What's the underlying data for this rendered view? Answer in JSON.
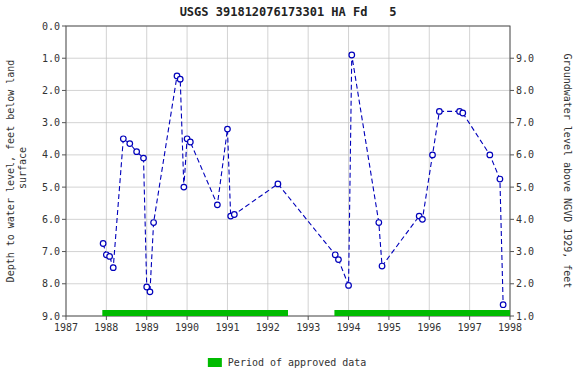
{
  "chart_data": {
    "type": "line",
    "title": "USGS 391812076173301 HA Fd   5",
    "y_label": "Depth to water level, feet below land\n surface",
    "y2_label": "Groundwater level above NGVD 1929, feet",
    "x": [
      1987.92,
      1988.0,
      1988.08,
      1988.17,
      1988.42,
      1988.58,
      1988.75,
      1988.92,
      1989.0,
      1989.08,
      1989.17,
      1989.75,
      1989.83,
      1989.92,
      1990.0,
      1990.08,
      1990.75,
      1991.0,
      1991.08,
      1991.17,
      1992.25,
      1993.67,
      1993.75,
      1994.0,
      1994.08,
      1994.75,
      1994.83,
      1995.75,
      1995.83,
      1996.08,
      1996.25,
      1996.75,
      1996.83,
      1997.5,
      1997.75,
      1997.83
    ],
    "series": [
      {
        "color": "#0000BB",
        "marker": "circle",
        "line_style": "dashed",
        "values": [
          6.75,
          7.1,
          7.15,
          7.5,
          3.5,
          3.65,
          3.9,
          4.1,
          8.1,
          8.25,
          6.1,
          1.55,
          1.65,
          5.0,
          3.5,
          3.6,
          5.55,
          3.2,
          5.9,
          5.85,
          4.9,
          7.1,
          7.25,
          8.05,
          0.9,
          6.1,
          7.45,
          5.9,
          6.0,
          4.0,
          2.65,
          2.65,
          2.7,
          4.0,
          4.75,
          8.65
        ]
      }
    ],
    "xlim": [
      1987,
      1998
    ],
    "xticks": [
      1987,
      1988,
      1989,
      1990,
      1991,
      1992,
      1993,
      1994,
      1995,
      1996,
      1997,
      1998
    ],
    "ylim": [
      9.0,
      0.0
    ],
    "yticks": [
      {
        "value": 0.0,
        "label": "0.0"
      },
      {
        "value": 1.0,
        "label": "1.0"
      },
      {
        "value": 2.0,
        "label": "2.0"
      },
      {
        "value": 3.0,
        "label": "3.0"
      },
      {
        "value": 4.0,
        "label": "4.0"
      },
      {
        "value": 5.0,
        "label": "5.0"
      },
      {
        "value": 6.0,
        "label": "6.0"
      },
      {
        "value": 7.0,
        "label": "7.0"
      },
      {
        "value": 8.0,
        "label": "8.0"
      },
      {
        "value": 9.0,
        "label": "9.0"
      }
    ],
    "y2lim": [
      1.0,
      10.0
    ],
    "y2ticks": [
      {
        "value": 9.0,
        "label": "9.0"
      },
      {
        "value": 8.0,
        "label": "8.0"
      },
      {
        "value": 7.0,
        "label": "7.0"
      },
      {
        "value": 6.0,
        "label": "6.0"
      },
      {
        "value": 5.0,
        "label": "5.0"
      },
      {
        "value": 4.0,
        "label": "4.0"
      },
      {
        "value": 3.0,
        "label": "3.0"
      },
      {
        "value": 2.0,
        "label": "2.0"
      },
      {
        "value": 1.0,
        "label": "1.0"
      }
    ],
    "grid": true,
    "legend": "bottom",
    "approved_periods": {
      "name": "Period of approved data",
      "color": "#00BB00",
      "ranges": [
        [
          1987.9,
          1992.5
        ],
        [
          1993.65,
          1998.0
        ]
      ]
    }
  }
}
